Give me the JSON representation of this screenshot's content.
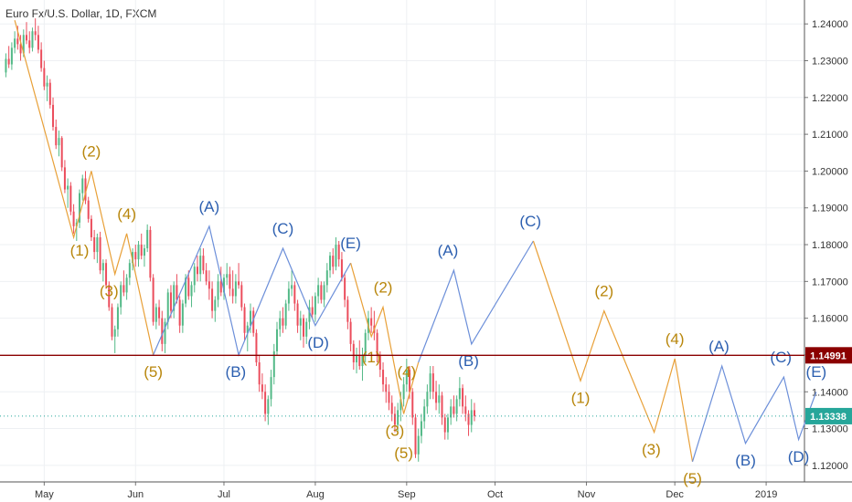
{
  "chart_data": {
    "type": "candlestick",
    "title": "Euro Fx/U.S. Dollar, 1D, FXCM",
    "x_ticks": [
      "May",
      "Jun",
      "Jul",
      "Aug",
      "Sep",
      "Oct",
      "Nov",
      "Dec",
      "2019"
    ],
    "x_tick_days": [
      15,
      46,
      76,
      107,
      138,
      168,
      199,
      229,
      260
    ],
    "x_range_days": [
      0,
      273
    ],
    "y_ticks": [
      "1.24000",
      "1.23000",
      "1.22000",
      "1.21000",
      "1.20000",
      "1.19000",
      "1.18000",
      "1.17000",
      "1.16000",
      "1.15000",
      "1.14000",
      "1.13000",
      "1.12000"
    ],
    "y_range": [
      1.1155,
      1.2465
    ],
    "grid": true,
    "colors": {
      "up": "#53b987",
      "down": "#eb4d5c",
      "impulse": "#e8a038",
      "correction": "#6c8fd9",
      "impulse_label": "#b8860b",
      "correction_label": "#2c5fb0",
      "hline": "#8b0000",
      "current": "#26a69a"
    },
    "horizontal_line": {
      "value": 1.14991,
      "label": "1.14991"
    },
    "current_price": {
      "value": 1.13338,
      "label": "1.13338"
    },
    "candles": [
      [
        1.2268,
        1.232,
        1.2255,
        1.2305
      ],
      [
        1.2305,
        1.234,
        1.228,
        1.229
      ],
      [
        1.229,
        1.235,
        1.2275,
        1.2335
      ],
      [
        1.2335,
        1.238,
        1.232,
        1.236
      ],
      [
        1.236,
        1.2395,
        1.233,
        1.2345
      ],
      [
        1.2345,
        1.237,
        1.23,
        1.232
      ],
      [
        1.232,
        1.2385,
        1.231,
        1.237
      ],
      [
        1.237,
        1.2405,
        1.2345,
        1.2355
      ],
      [
        1.2355,
        1.238,
        1.232,
        1.2335
      ],
      [
        1.2335,
        1.239,
        1.2325,
        1.238
      ],
      [
        1.238,
        1.2415,
        1.2355,
        1.237
      ],
      [
        1.237,
        1.2395,
        1.232,
        1.233
      ],
      [
        1.233,
        1.235,
        1.227,
        1.228
      ],
      [
        1.228,
        1.23,
        1.222,
        1.223
      ],
      [
        1.223,
        1.226,
        1.219,
        1.224
      ],
      [
        1.224,
        1.225,
        1.217,
        1.218
      ],
      [
        1.218,
        1.22,
        1.211,
        1.212
      ],
      [
        1.212,
        1.214,
        1.206,
        1.207
      ],
      [
        1.207,
        1.211,
        1.204,
        1.209
      ],
      [
        1.209,
        1.2095,
        1.2,
        1.201
      ],
      [
        1.201,
        1.203,
        1.194,
        1.195
      ],
      [
        1.195,
        1.198,
        1.19,
        1.196
      ],
      [
        1.196,
        1.197,
        1.188,
        1.189
      ],
      [
        1.189,
        1.191,
        1.183,
        1.185
      ],
      [
        1.185,
        1.187,
        1.181,
        1.186
      ],
      [
        1.186,
        1.195,
        1.1845,
        1.194
      ],
      [
        1.194,
        1.199,
        1.192,
        1.198
      ],
      [
        1.198,
        1.2,
        1.191,
        1.192
      ],
      [
        1.192,
        1.193,
        1.186,
        1.187
      ],
      [
        1.187,
        1.188,
        1.181,
        1.182
      ],
      [
        1.182,
        1.184,
        1.176,
        1.178
      ],
      [
        1.178,
        1.183,
        1.175,
        1.182
      ],
      [
        1.182,
        1.1835,
        1.172,
        1.173
      ],
      [
        1.173,
        1.176,
        1.17,
        1.175
      ],
      [
        1.175,
        1.176,
        1.168,
        1.169
      ],
      [
        1.169,
        1.17,
        1.162,
        1.163
      ],
      [
        1.163,
        1.164,
        1.154,
        1.155
      ],
      [
        1.155,
        1.158,
        1.1505,
        1.157
      ],
      [
        1.157,
        1.164,
        1.155,
        1.163
      ],
      [
        1.163,
        1.17,
        1.161,
        1.169
      ],
      [
        1.169,
        1.173,
        1.166,
        1.167
      ],
      [
        1.167,
        1.172,
        1.165,
        1.171
      ],
      [
        1.171,
        1.176,
        1.169,
        1.175
      ],
      [
        1.175,
        1.179,
        1.173,
        1.178
      ],
      [
        1.178,
        1.18,
        1.174,
        1.176
      ],
      [
        1.176,
        1.181,
        1.174,
        1.18
      ],
      [
        1.18,
        1.183,
        1.176,
        1.177
      ],
      [
        1.177,
        1.18,
        1.174,
        1.179
      ],
      [
        1.179,
        1.1855,
        1.178,
        1.184
      ],
      [
        1.184,
        1.185,
        1.17,
        1.171
      ],
      [
        1.171,
        1.172,
        1.158,
        1.159
      ],
      [
        1.159,
        1.164,
        1.157,
        1.163
      ],
      [
        1.163,
        1.165,
        1.158,
        1.16
      ],
      [
        1.16,
        1.162,
        1.151,
        1.153
      ],
      [
        1.153,
        1.16,
        1.1505,
        1.159
      ],
      [
        1.159,
        1.168,
        1.157,
        1.167
      ],
      [
        1.167,
        1.169,
        1.16,
        1.162
      ],
      [
        1.162,
        1.17,
        1.16,
        1.169
      ],
      [
        1.169,
        1.172,
        1.164,
        1.165
      ],
      [
        1.165,
        1.166,
        1.156,
        1.158
      ],
      [
        1.158,
        1.165,
        1.156,
        1.164
      ],
      [
        1.164,
        1.172,
        1.163,
        1.171
      ],
      [
        1.171,
        1.173,
        1.165,
        1.166
      ],
      [
        1.166,
        1.17,
        1.163,
        1.169
      ],
      [
        1.169,
        1.175,
        1.167,
        1.174
      ],
      [
        1.174,
        1.177,
        1.17,
        1.172
      ],
      [
        1.172,
        1.179,
        1.17,
        1.177
      ],
      [
        1.177,
        1.179,
        1.172,
        1.173
      ],
      [
        1.173,
        1.175,
        1.169,
        1.17
      ],
      [
        1.17,
        1.173,
        1.165,
        1.168
      ],
      [
        1.168,
        1.17,
        1.16,
        1.162
      ],
      [
        1.162,
        1.166,
        1.159,
        1.165
      ],
      [
        1.165,
        1.172,
        1.163,
        1.17
      ],
      [
        1.17,
        1.174,
        1.166,
        1.167
      ],
      [
        1.167,
        1.172,
        1.165,
        1.171
      ],
      [
        1.171,
        1.175,
        1.169,
        1.172
      ],
      [
        1.172,
        1.174,
        1.166,
        1.168
      ],
      [
        1.168,
        1.173,
        1.164,
        1.166
      ],
      [
        1.166,
        1.172,
        1.164,
        1.17
      ],
      [
        1.17,
        1.175,
        1.168,
        1.169
      ],
      [
        1.169,
        1.17,
        1.162,
        1.163
      ],
      [
        1.163,
        1.164,
        1.154,
        1.156
      ],
      [
        1.156,
        1.159,
        1.151,
        1.158
      ],
      [
        1.158,
        1.164,
        1.156,
        1.162
      ],
      [
        1.162,
        1.163,
        1.155,
        1.156
      ],
      [
        1.156,
        1.157,
        1.147,
        1.148
      ],
      [
        1.148,
        1.15,
        1.14,
        1.142
      ],
      [
        1.142,
        1.145,
        1.138,
        1.14
      ],
      [
        1.14,
        1.142,
        1.132,
        1.134
      ],
      [
        1.134,
        1.139,
        1.131,
        1.138
      ],
      [
        1.138,
        1.146,
        1.136,
        1.144
      ],
      [
        1.144,
        1.153,
        1.142,
        1.151
      ],
      [
        1.151,
        1.159,
        1.15,
        1.157
      ],
      [
        1.157,
        1.162,
        1.155,
        1.16
      ],
      [
        1.16,
        1.163,
        1.156,
        1.158
      ],
      [
        1.158,
        1.165,
        1.157,
        1.164
      ],
      [
        1.164,
        1.17,
        1.162,
        1.168
      ],
      [
        1.168,
        1.173,
        1.166,
        1.169
      ],
      [
        1.169,
        1.17,
        1.162,
        1.164
      ],
      [
        1.164,
        1.165,
        1.156,
        1.158
      ],
      [
        1.158,
        1.162,
        1.154,
        1.16
      ],
      [
        1.16,
        1.161,
        1.152,
        1.155
      ],
      [
        1.155,
        1.16,
        1.153,
        1.159
      ],
      [
        1.159,
        1.165,
        1.157,
        1.163
      ],
      [
        1.163,
        1.166,
        1.16,
        1.161
      ],
      [
        1.161,
        1.167,
        1.159,
        1.166
      ],
      [
        1.166,
        1.171,
        1.164,
        1.169
      ],
      [
        1.169,
        1.17,
        1.164,
        1.165
      ],
      [
        1.165,
        1.17,
        1.163,
        1.169
      ],
      [
        1.169,
        1.175,
        1.167,
        1.173
      ],
      [
        1.173,
        1.178,
        1.171,
        1.177
      ],
      [
        1.177,
        1.179,
        1.172,
        1.174
      ],
      [
        1.174,
        1.182,
        1.173,
        1.18
      ],
      [
        1.18,
        1.181,
        1.174,
        1.176
      ],
      [
        1.176,
        1.178,
        1.17,
        1.171
      ],
      [
        1.171,
        1.172,
        1.163,
        1.165
      ],
      [
        1.165,
        1.166,
        1.157,
        1.159
      ],
      [
        1.159,
        1.16,
        1.151,
        1.153
      ],
      [
        1.153,
        1.154,
        1.146,
        1.148
      ],
      [
        1.148,
        1.152,
        1.145,
        1.15
      ],
      [
        1.15,
        1.154,
        1.146,
        1.147
      ],
      [
        1.147,
        1.152,
        1.143,
        1.15
      ],
      [
        1.15,
        1.157,
        1.148,
        1.156
      ],
      [
        1.156,
        1.162,
        1.154,
        1.16
      ],
      [
        1.16,
        1.163,
        1.156,
        1.158
      ],
      [
        1.158,
        1.162,
        1.154,
        1.156
      ],
      [
        1.156,
        1.157,
        1.148,
        1.15
      ],
      [
        1.15,
        1.151,
        1.144,
        1.146
      ],
      [
        1.146,
        1.148,
        1.14,
        1.142
      ],
      [
        1.142,
        1.144,
        1.137,
        1.14
      ],
      [
        1.14,
        1.142,
        1.135,
        1.137
      ],
      [
        1.137,
        1.139,
        1.132,
        1.134
      ],
      [
        1.134,
        1.136,
        1.129,
        1.131
      ],
      [
        1.131,
        1.137,
        1.129,
        1.135
      ],
      [
        1.135,
        1.14,
        1.132,
        1.138
      ],
      [
        1.138,
        1.144,
        1.136,
        1.142
      ],
      [
        1.142,
        1.149,
        1.14,
        1.146
      ],
      [
        1.146,
        1.147,
        1.138,
        1.14
      ],
      [
        1.14,
        1.141,
        1.131,
        1.133
      ],
      [
        1.133,
        1.134,
        1.122,
        1.123
      ],
      [
        1.123,
        1.13,
        1.121,
        1.128
      ],
      [
        1.128,
        1.134,
        1.126,
        1.132
      ],
      [
        1.132,
        1.138,
        1.13,
        1.136
      ],
      [
        1.136,
        1.142,
        1.134,
        1.14
      ],
      [
        1.14,
        1.147,
        1.138,
        1.145
      ],
      [
        1.145,
        1.147,
        1.138,
        1.14
      ],
      [
        1.14,
        1.143,
        1.135,
        1.137
      ],
      [
        1.137,
        1.142,
        1.134,
        1.139
      ],
      [
        1.139,
        1.14,
        1.131,
        1.133
      ],
      [
        1.133,
        1.134,
        1.127,
        1.129
      ],
      [
        1.129,
        1.134,
        1.127,
        1.133
      ],
      [
        1.133,
        1.138,
        1.131,
        1.136
      ],
      [
        1.136,
        1.139,
        1.133,
        1.134
      ],
      [
        1.134,
        1.139,
        1.132,
        1.138
      ],
      [
        1.138,
        1.144,
        1.136,
        1.141
      ],
      [
        1.141,
        1.142,
        1.134,
        1.136
      ],
      [
        1.136,
        1.139,
        1.132,
        1.134
      ],
      [
        1.134,
        1.135,
        1.128,
        1.131
      ],
      [
        1.131,
        1.138,
        1.129,
        1.135
      ],
      [
        1.135,
        1.137,
        1.132,
        1.1334
      ]
    ],
    "wave_paths": [
      {
        "kind": "impulse",
        "points": [
          [
            5,
            1.241
          ],
          [
            25,
            1.182
          ],
          [
            31,
            1.2
          ],
          [
            39,
            1.172
          ],
          [
            43,
            1.183
          ],
          [
            52,
            1.15
          ]
        ]
      },
      {
        "kind": "correction",
        "points": [
          [
            52,
            1.15
          ],
          [
            71,
            1.185
          ],
          [
            81,
            1.15
          ],
          [
            96,
            1.179
          ],
          [
            107,
            1.158
          ],
          [
            119,
            1.175
          ]
        ]
      },
      {
        "kind": "impulse",
        "points": [
          [
            119,
            1.175
          ],
          [
            126,
            1.155
          ],
          [
            130,
            1.163
          ],
          [
            137,
            1.134
          ],
          [
            142,
            1.148
          ]
        ]
      },
      {
        "kind": "correction",
        "points": [
          [
            142,
            1.148
          ],
          [
            154,
            1.173
          ],
          [
            160,
            1.153
          ],
          [
            181,
            1.181
          ]
        ]
      },
      {
        "kind": "impulse",
        "points": [
          [
            181,
            1.181
          ],
          [
            197,
            1.143
          ],
          [
            205,
            1.162
          ],
          [
            222,
            1.129
          ],
          [
            229,
            1.149
          ],
          [
            235,
            1.121
          ]
        ]
      },
      {
        "kind": "correction",
        "points": [
          [
            235,
            1.121
          ],
          [
            245,
            1.147
          ],
          [
            253,
            1.126
          ],
          [
            266,
            1.144
          ],
          [
            271,
            1.127
          ],
          [
            277,
            1.14
          ]
        ]
      }
    ],
    "wave_labels": [
      {
        "text": "(2)",
        "d": 31,
        "v": 1.204,
        "kind": "impulse"
      },
      {
        "text": "(1)",
        "d": 27,
        "v": 1.177,
        "kind": "impulse"
      },
      {
        "text": "(4)",
        "d": 43,
        "v": 1.187,
        "kind": "impulse"
      },
      {
        "text": "(3)",
        "d": 37,
        "v": 1.166,
        "kind": "impulse"
      },
      {
        "text": "(5)",
        "d": 52,
        "v": 1.144,
        "kind": "impulse"
      },
      {
        "text": "(A)",
        "d": 71,
        "v": 1.189,
        "kind": "correction"
      },
      {
        "text": "(B)",
        "d": 80,
        "v": 1.144,
        "kind": "correction"
      },
      {
        "text": "(C)",
        "d": 96,
        "v": 1.183,
        "kind": "correction"
      },
      {
        "text": "(D)",
        "d": 108,
        "v": 1.152,
        "kind": "correction"
      },
      {
        "text": "(E)",
        "d": 119,
        "v": 1.179,
        "kind": "correction"
      },
      {
        "text": "(2)",
        "d": 130,
        "v": 1.167,
        "kind": "impulse"
      },
      {
        "text": "(1)",
        "d": 126,
        "v": 1.148,
        "kind": "impulse"
      },
      {
        "text": "(4)",
        "d": 138,
        "v": 1.144,
        "kind": "impulse"
      },
      {
        "text": "(3)",
        "d": 134,
        "v": 1.128,
        "kind": "impulse"
      },
      {
        "text": "(5)",
        "d": 137,
        "v": 1.122,
        "kind": "impulse"
      },
      {
        "text": "(A)",
        "d": 152,
        "v": 1.177,
        "kind": "correction"
      },
      {
        "text": "(B)",
        "d": 159,
        "v": 1.147,
        "kind": "correction"
      },
      {
        "text": "(C)",
        "d": 180,
        "v": 1.185,
        "kind": "correction"
      },
      {
        "text": "(1)",
        "d": 197,
        "v": 1.137,
        "kind": "impulse"
      },
      {
        "text": "(2)",
        "d": 205,
        "v": 1.166,
        "kind": "impulse"
      },
      {
        "text": "(3)",
        "d": 221,
        "v": 1.123,
        "kind": "impulse"
      },
      {
        "text": "(4)",
        "d": 229,
        "v": 1.153,
        "kind": "impulse"
      },
      {
        "text": "(5)",
        "d": 235,
        "v": 1.115,
        "kind": "impulse"
      },
      {
        "text": "(A)",
        "d": 244,
        "v": 1.151,
        "kind": "correction"
      },
      {
        "text": "(B)",
        "d": 253,
        "v": 1.12,
        "kind": "correction"
      },
      {
        "text": "(C)",
        "d": 265,
        "v": 1.148,
        "kind": "correction"
      },
      {
        "text": "(D)",
        "d": 271,
        "v": 1.121,
        "kind": "correction"
      },
      {
        "text": "(E)",
        "d": 277,
        "v": 1.144,
        "kind": "correction"
      }
    ]
  }
}
